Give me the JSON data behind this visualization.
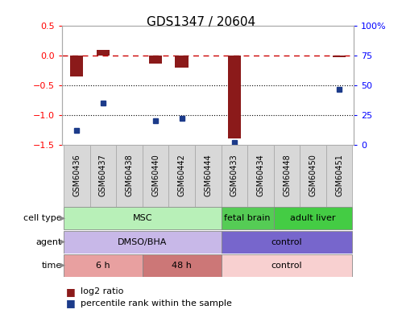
{
  "title": "GDS1347 / 20604",
  "samples": [
    "GSM60436",
    "GSM60437",
    "GSM60438",
    "GSM60440",
    "GSM60442",
    "GSM60444",
    "GSM60433",
    "GSM60434",
    "GSM60448",
    "GSM60450",
    "GSM60451"
  ],
  "log2_ratio": [
    -0.35,
    0.1,
    0.0,
    -0.13,
    -0.2,
    0.0,
    -1.4,
    0.0,
    0.0,
    0.0,
    -0.02
  ],
  "percentile_rank": [
    12,
    35,
    null,
    20,
    22,
    null,
    2,
    null,
    null,
    null,
    47
  ],
  "ylim_left": [
    -1.5,
    0.5
  ],
  "ylim_right": [
    0,
    100
  ],
  "yticks_left": [
    -1.5,
    -1.0,
    -0.5,
    0.0,
    0.5
  ],
  "yticks_right": [
    0,
    25,
    50,
    75,
    100
  ],
  "ytick_labels_right": [
    "0",
    "25",
    "50",
    "75",
    "100%"
  ],
  "dotted_lines": [
    -0.5,
    -1.0
  ],
  "bar_color": "#8B1A1A",
  "dot_color": "#1C3B8A",
  "hline_color": "#CC0000",
  "sample_box_color": "#d8d8d8",
  "cell_type_groups": [
    {
      "label": "MSC",
      "start": 0,
      "end": 5,
      "color": "#b8f0b8",
      "edge": "#888888"
    },
    {
      "label": "fetal brain",
      "start": 6,
      "end": 7,
      "color": "#55cc55",
      "edge": "#888888"
    },
    {
      "label": "adult liver",
      "start": 8,
      "end": 10,
      "color": "#44cc44",
      "edge": "#888888"
    }
  ],
  "agent_groups": [
    {
      "label": "DMSO/BHA",
      "start": 0,
      "end": 5,
      "color": "#c8b8e8",
      "edge": "#888888"
    },
    {
      "label": "control",
      "start": 6,
      "end": 10,
      "color": "#7766cc",
      "edge": "#888888"
    }
  ],
  "time_groups": [
    {
      "label": "6 h",
      "start": 0,
      "end": 2,
      "color": "#e8a0a0",
      "edge": "#888888"
    },
    {
      "label": "48 h",
      "start": 3,
      "end": 5,
      "color": "#cc7777",
      "edge": "#888888"
    },
    {
      "label": "control",
      "start": 6,
      "end": 10,
      "color": "#f8d0d0",
      "edge": "#888888"
    }
  ],
  "row_labels": [
    "cell type",
    "agent",
    "time"
  ],
  "legend_red": "log2 ratio",
  "legend_blue": "percentile rank within the sample",
  "bg_color": "#ffffff",
  "spine_color": "#aaaaaa"
}
